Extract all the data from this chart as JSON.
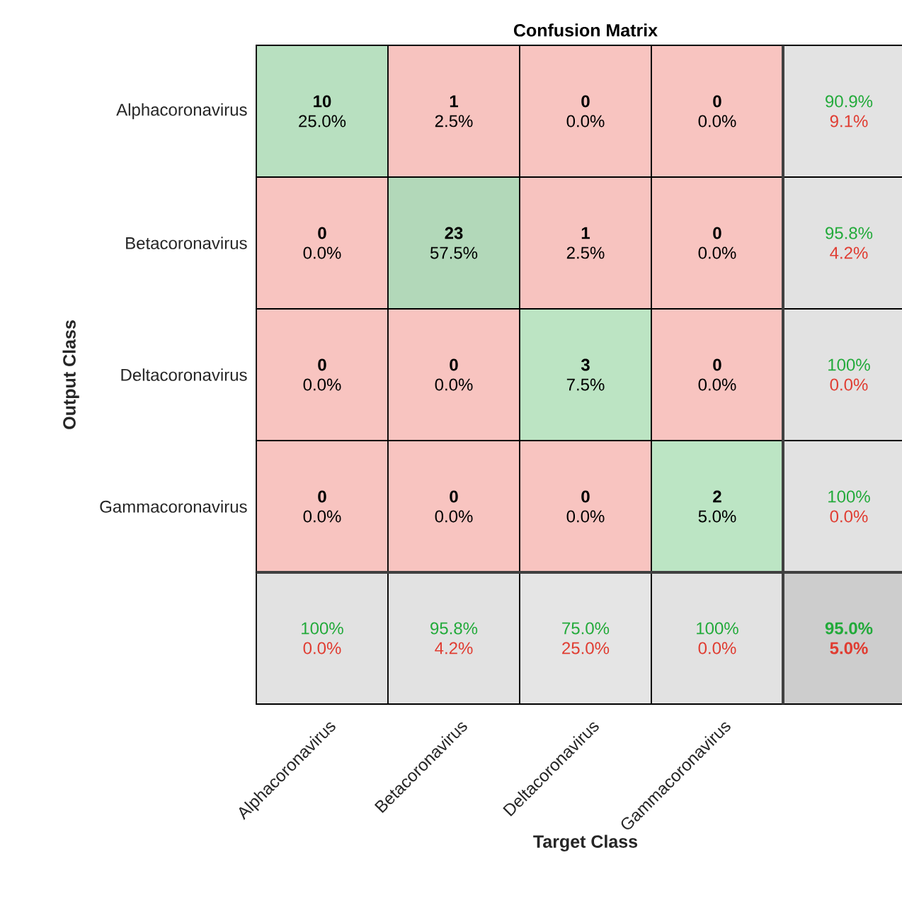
{
  "chart_data": {
    "type": "heatmap",
    "title": "Confusion Matrix",
    "xlabel": "Target Class",
    "ylabel": "Output Class",
    "categories": [
      "Alphacoronavirus",
      "Betacoronavirus",
      "Deltacoronavirus",
      "Gammacoronavirus",
      null
    ],
    "y_categories": [
      "Alphacoronavirus",
      "Betacoronavirus",
      "Deltacoronavirus",
      "Gammacoronavirus",
      null
    ],
    "cells": [
      [
        10,
        1,
        0,
        0,
        90.9
      ],
      [
        0,
        23,
        1,
        0,
        95.8
      ],
      [
        0,
        0,
        3,
        0,
        100
      ],
      [
        0,
        0,
        0,
        2,
        100
      ],
      [
        100,
        95.8,
        75.0,
        100,
        95.0
      ]
    ],
    "cell_labels": [
      [
        "10",
        "1",
        "0",
        "0",
        "90.9%"
      ],
      [
        "0",
        "23",
        "1",
        "0",
        "95.8%"
      ],
      [
        "0",
        "0",
        "3",
        "0",
        "100%"
      ],
      [
        "0",
        "0",
        "0",
        "2",
        "100%"
      ],
      [
        "100%",
        "95.8%",
        "75.0%",
        "100%",
        "95.0%"
      ]
    ],
    "annotations": [
      "25.0%",
      "2.5%",
      "0.0%",
      "0.0%",
      "9.1%",
      "0.0%",
      "57.5%",
      "2.5%",
      "0.0%",
      "4.2%",
      "0.0%",
      "0.0%",
      "7.5%",
      "0.0%",
      "0.0%",
      "0.0%",
      "0.0%",
      "0.0%",
      "5.0%",
      "0.0%",
      "0.0%",
      "4.2%",
      "25.0%",
      "0.0%",
      "5.0%"
    ]
  }
}
